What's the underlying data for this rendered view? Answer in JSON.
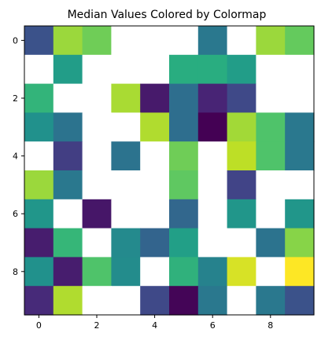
{
  "chart_data": {
    "type": "heatmap",
    "title": "Median Values Colored by Colormap",
    "xlabel": "",
    "ylabel": "",
    "colormap": "viridis",
    "value_range": [
      0,
      1
    ],
    "rows": 10,
    "cols": 10,
    "xlim": [
      -0.5,
      9.5
    ],
    "ylim": [
      9.5,
      -0.5
    ],
    "xticks": [
      0,
      2,
      4,
      6,
      8
    ],
    "yticks": [
      0,
      2,
      4,
      6,
      8
    ],
    "grid": false,
    "missing_color": "#ffffff",
    "values": [
      [
        0.25,
        0.85,
        0.78,
        null,
        null,
        null,
        0.4,
        null,
        0.85,
        0.76
      ],
      [
        null,
        0.55,
        null,
        null,
        null,
        0.62,
        0.62,
        0.55,
        null,
        null
      ],
      [
        0.65,
        null,
        null,
        0.87,
        0.07,
        0.36,
        0.1,
        0.22,
        null,
        null
      ],
      [
        0.5,
        0.38,
        null,
        null,
        0.88,
        0.36,
        0.0,
        0.86,
        0.72,
        0.4
      ],
      [
        null,
        0.18,
        null,
        0.38,
        null,
        0.78,
        null,
        0.9,
        0.72,
        0.4
      ],
      [
        0.85,
        0.4,
        null,
        null,
        null,
        0.75,
        null,
        0.2,
        null,
        null
      ],
      [
        0.52,
        null,
        0.06,
        null,
        null,
        0.33,
        null,
        0.52,
        null,
        0.52
      ],
      [
        0.08,
        0.66,
        null,
        0.47,
        0.32,
        0.56,
        null,
        null,
        0.38,
        0.82
      ],
      [
        0.5,
        0.08,
        0.72,
        0.48,
        null,
        0.64,
        0.44,
        0.94,
        null,
        1.0
      ],
      [
        0.12,
        0.88,
        null,
        null,
        0.22,
        0.01,
        0.4,
        null,
        0.4,
        0.25
      ]
    ]
  }
}
